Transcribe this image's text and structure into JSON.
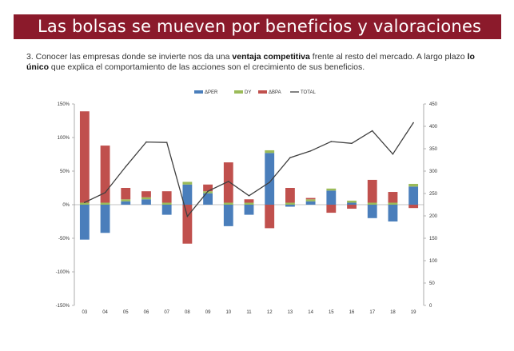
{
  "banner": {
    "title": "Las bolsas se mueven por beneficios y valoraciones"
  },
  "subtitle": {
    "part1": "3. Conocer las empresas donde se invierte nos da una ",
    "bold1": "ventaja competitiva",
    "part2": " frente al resto del mercado. A largo plazo ",
    "bold2": "lo único",
    "part3": " que explica el comportamiento de las acciones son el crecimiento de sus beneficios."
  },
  "colors": {
    "banner": "#8b1a2b",
    "per": "#4a7ebb",
    "dy": "#9bbb59",
    "bpa": "#c0504d",
    "total": "#404040"
  },
  "chart_data": {
    "type": "bar",
    "stacked": true,
    "categories": [
      "03",
      "04",
      "05",
      "06",
      "07",
      "08",
      "09",
      "10",
      "11",
      "12",
      "13",
      "14",
      "15",
      "16",
      "17",
      "18",
      "19"
    ],
    "series": [
      {
        "name": "ΔPER",
        "values": [
          -52,
          -42,
          5,
          8,
          -15,
          30,
          17,
          -32,
          -15,
          77,
          -3,
          5,
          21,
          3,
          -20,
          -25,
          27
        ]
      },
      {
        "name": "DY",
        "values": [
          3,
          3,
          3,
          3,
          3,
          4,
          3,
          3,
          3,
          4,
          3,
          3,
          3,
          3,
          3,
          3,
          4
        ]
      },
      {
        "name": "ΔBPA",
        "values": [
          136,
          85,
          17,
          9,
          17,
          -58,
          10,
          60,
          5,
          -35,
          22,
          2,
          -12,
          -6,
          34,
          16,
          -5
        ]
      }
    ],
    "line": {
      "name": "TOTAL",
      "axis": "right",
      "values": [
        230,
        252,
        310,
        365,
        364,
        199,
        255,
        277,
        245,
        275,
        330,
        345,
        366,
        362,
        390,
        338,
        408
      ]
    },
    "left_axis": {
      "min": -150,
      "max": 150,
      "ticks": [
        "150%",
        "100%",
        "50%",
        "0%",
        "-50%",
        "-100%",
        "-150%"
      ]
    },
    "right_axis": {
      "min": 0,
      "max": 450,
      "ticks": [
        "450",
        "400",
        "350",
        "300",
        "250",
        "200",
        "150",
        "100",
        "50",
        "0"
      ]
    },
    "legend": [
      "ΔPER",
      "DY",
      "ΔBPA",
      "TOTAL"
    ]
  }
}
